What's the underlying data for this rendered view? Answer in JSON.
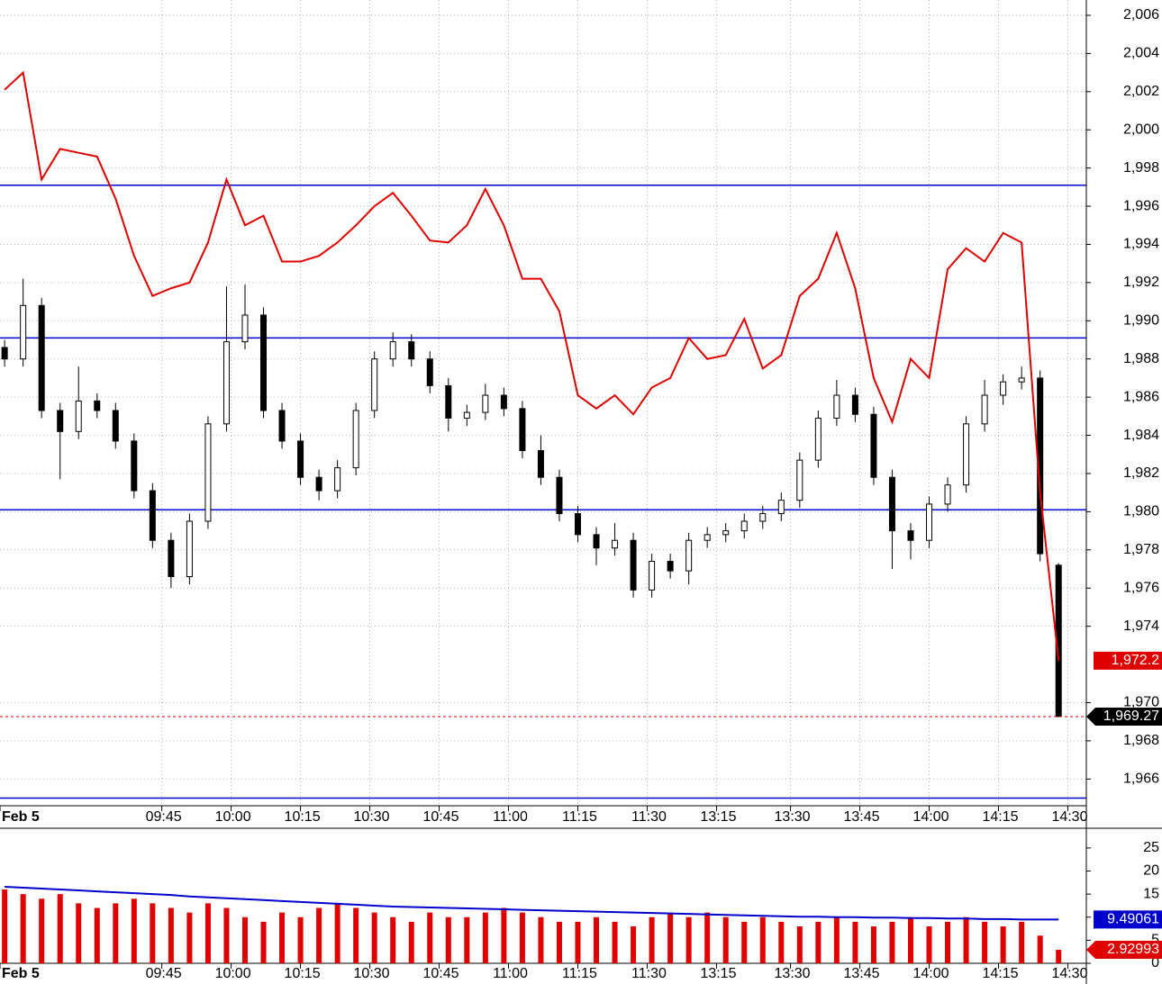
{
  "chart_data": [
    {
      "type": "candlestick",
      "xlim": [
        1,
        236
      ],
      "xticks": [
        {
          "value": 1,
          "label": "Feb 5"
        },
        {
          "value": 36,
          "label": "09:45"
        },
        {
          "value": 51,
          "label": "10:00"
        },
        {
          "value": 66,
          "label": "10:15"
        },
        {
          "value": 81,
          "label": "10:30"
        },
        {
          "value": 96,
          "label": "10:45"
        },
        {
          "value": 111,
          "label": "11:00"
        },
        {
          "value": 126,
          "label": "11:15"
        },
        {
          "value": 141,
          "label": "11:30"
        },
        {
          "value": 156,
          "label": "13:15"
        },
        {
          "value": 172,
          "label": "13:30"
        },
        {
          "value": 187,
          "label": "13:45"
        },
        {
          "value": 202,
          "label": "14:00"
        },
        {
          "value": 217,
          "label": "14:15"
        },
        {
          "value": 232,
          "label": "14:30"
        }
      ],
      "ylim": [
        1964.6,
        2006.8
      ],
      "yticks": [
        {
          "value": 1966,
          "label": "1,966"
        },
        {
          "value": 1968,
          "label": "1,968"
        },
        {
          "value": 1970,
          "label": "1,970"
        },
        {
          "value": 1974,
          "label": "1,974"
        },
        {
          "value": 1976,
          "label": "1,976"
        },
        {
          "value": 1978,
          "label": "1,978"
        },
        {
          "value": 1980,
          "label": "1,980"
        },
        {
          "value": 1982,
          "label": "1,982"
        },
        {
          "value": 1984,
          "label": "1,984"
        },
        {
          "value": 1986,
          "label": "1,986"
        },
        {
          "value": 1988,
          "label": "1,988"
        },
        {
          "value": 1990,
          "label": "1,990"
        },
        {
          "value": 1992,
          "label": "1,992"
        },
        {
          "value": 1994,
          "label": "1,994"
        },
        {
          "value": 1996,
          "label": "1,996"
        },
        {
          "value": 1998,
          "label": "1,998"
        },
        {
          "value": 2000,
          "label": "2,000"
        },
        {
          "value": 2002,
          "label": "2,002"
        },
        {
          "value": 2004,
          "label": "2,004"
        },
        {
          "value": 2006,
          "label": "2,006"
        }
      ],
      "grid": true,
      "x": [
        2,
        6,
        10,
        14,
        18,
        22,
        26,
        30,
        34,
        38,
        42,
        46,
        50,
        54,
        58,
        62,
        66,
        70,
        74,
        78,
        82,
        86,
        90,
        94,
        98,
        102,
        106,
        110,
        114,
        118,
        122,
        126,
        130,
        134,
        138,
        142,
        146,
        150,
        154,
        158,
        162,
        166,
        170,
        174,
        178,
        182,
        186,
        190,
        194,
        198,
        202,
        206,
        210,
        214,
        218,
        222,
        226,
        230
      ],
      "series": [
        {
          "type": "candlestick",
          "up_color": "#ffffff",
          "down_color": "#000000",
          "last_label": "1,969.27",
          "open": [
            1988.6,
            1988.0,
            1990.8,
            1985.3,
            1984.2,
            1985.8,
            1985.3,
            1983.7,
            1981.1,
            1978.5,
            1976.6,
            1979.5,
            1984.6,
            1988.9,
            1990.3,
            1985.3,
            1983.7,
            1981.8,
            1981.1,
            1982.3,
            1985.3,
            1988.0,
            1988.9,
            1988.0,
            1986.6,
            1984.9,
            1985.2,
            1986.1,
            1985.4,
            1983.2,
            1981.8,
            1979.9,
            1978.8,
            1978.1,
            1978.5,
            1975.9,
            1977.4,
            1976.9,
            1978.5,
            1978.8,
            1979.0,
            1979.5,
            1979.9,
            1980.6,
            1982.7,
            1984.9,
            1986.1,
            1985.1,
            1981.8,
            1979.0,
            1978.5,
            1980.4,
            1981.4,
            1984.6,
            1986.1,
            1986.8,
            1987.0,
            1977.2
          ],
          "high": [
            1989.0,
            1992.2,
            1991.2,
            1985.7,
            1987.6,
            1986.2,
            1985.7,
            1984.1,
            1981.5,
            1978.9,
            1979.9,
            1985.0,
            1991.8,
            1991.9,
            1990.7,
            1985.7,
            1984.1,
            1982.2,
            1982.7,
            1985.7,
            1988.4,
            1989.4,
            1989.3,
            1988.4,
            1987.0,
            1985.6,
            1986.7,
            1986.5,
            1985.8,
            1984.0,
            1982.2,
            1980.3,
            1979.2,
            1979.4,
            1978.9,
            1977.8,
            1977.8,
            1978.9,
            1979.2,
            1979.4,
            1979.9,
            1980.3,
            1981.0,
            1983.1,
            1985.3,
            1986.9,
            1986.5,
            1985.5,
            1982.2,
            1979.4,
            1980.8,
            1981.8,
            1985.0,
            1986.9,
            1987.2,
            1987.6,
            1987.4,
            1977.3
          ],
          "low": [
            1987.6,
            1987.6,
            1984.9,
            1981.7,
            1983.8,
            1984.9,
            1983.3,
            1980.7,
            1978.1,
            1976.0,
            1976.2,
            1979.1,
            1984.2,
            1988.5,
            1984.9,
            1983.3,
            1981.4,
            1980.6,
            1980.7,
            1981.9,
            1984.9,
            1987.6,
            1987.6,
            1986.2,
            1984.2,
            1984.5,
            1984.8,
            1985.0,
            1982.8,
            1981.4,
            1979.5,
            1978.4,
            1977.2,
            1977.7,
            1975.5,
            1975.5,
            1976.5,
            1976.2,
            1978.1,
            1978.4,
            1978.6,
            1979.1,
            1979.5,
            1980.2,
            1982.3,
            1984.5,
            1984.7,
            1981.4,
            1977.0,
            1977.5,
            1978.1,
            1980.0,
            1981.0,
            1984.2,
            1985.6,
            1986.4,
            1977.4,
            1969.27
          ],
          "close": [
            1988.0,
            1990.8,
            1985.3,
            1984.2,
            1985.8,
            1985.3,
            1983.7,
            1981.1,
            1978.5,
            1976.6,
            1979.5,
            1984.6,
            1988.9,
            1990.3,
            1985.3,
            1983.7,
            1981.8,
            1981.1,
            1982.3,
            1985.3,
            1988.0,
            1988.9,
            1988.0,
            1986.6,
            1984.9,
            1985.2,
            1986.1,
            1985.4,
            1983.2,
            1981.8,
            1979.9,
            1978.8,
            1978.1,
            1978.5,
            1975.9,
            1977.4,
            1976.9,
            1978.5,
            1978.8,
            1979.0,
            1979.5,
            1979.9,
            1980.6,
            1982.7,
            1984.9,
            1986.1,
            1985.1,
            1981.8,
            1979.0,
            1978.5,
            1980.4,
            1981.4,
            1984.6,
            1986.1,
            1986.8,
            1987.0,
            1977.8,
            1969.27
          ]
        },
        {
          "type": "line",
          "color": "#e00000",
          "last_label": "1,972.2",
          "values": [
            2002.1,
            2003.0,
            1997.4,
            1999.0,
            1998.8,
            1998.6,
            1996.4,
            1993.4,
            1991.3,
            1991.7,
            1992.0,
            1994.1,
            1997.4,
            1995.0,
            1995.5,
            1993.1,
            1993.1,
            1993.4,
            1994.1,
            1995.0,
            1996.0,
            1996.7,
            1995.5,
            1994.2,
            1994.1,
            1995.0,
            1996.9,
            1995.0,
            1992.2,
            1992.2,
            1990.5,
            1986.1,
            1985.4,
            1986.1,
            1985.1,
            1986.5,
            1987.0,
            1989.1,
            1988.0,
            1988.2,
            1990.1,
            1987.5,
            1988.2,
            1991.3,
            1992.2,
            1994.6,
            1991.7,
            1987.0,
            1984.7,
            1988.0,
            1987.0,
            1992.7,
            1993.8,
            1993.1,
            1994.6,
            1994.1,
            1981.0,
            1972.2
          ]
        }
      ],
      "hlines": {
        "color": "#0000cc",
        "values": [
          1997.1,
          1989.1,
          1980.1,
          1965.0
        ]
      }
    },
    {
      "type": "bar",
      "xlim": [
        1,
        236
      ],
      "xticks": [
        {
          "value": 1,
          "label": "Feb 5"
        },
        {
          "value": 36,
          "label": "09:45"
        },
        {
          "value": 51,
          "label": "10:00"
        },
        {
          "value": 66,
          "label": "10:15"
        },
        {
          "value": 81,
          "label": "10:30"
        },
        {
          "value": 96,
          "label": "10:45"
        },
        {
          "value": 111,
          "label": "11:00"
        },
        {
          "value": 126,
          "label": "11:15"
        },
        {
          "value": 141,
          "label": "11:30"
        },
        {
          "value": 156,
          "label": "13:15"
        },
        {
          "value": 172,
          "label": "13:30"
        },
        {
          "value": 187,
          "label": "13:45"
        },
        {
          "value": 202,
          "label": "14:00"
        },
        {
          "value": 217,
          "label": "14:15"
        },
        {
          "value": 232,
          "label": "14:30"
        }
      ],
      "ylim": [
        0,
        28.3
      ],
      "yticks": [
        0,
        5,
        10,
        15,
        20,
        25
      ],
      "x": [
        2,
        6,
        10,
        14,
        18,
        22,
        26,
        30,
        34,
        38,
        42,
        46,
        50,
        54,
        58,
        62,
        66,
        70,
        74,
        78,
        82,
        86,
        90,
        94,
        98,
        102,
        106,
        110,
        114,
        118,
        122,
        126,
        130,
        134,
        138,
        142,
        146,
        150,
        154,
        158,
        162,
        166,
        170,
        174,
        178,
        182,
        186,
        190,
        194,
        198,
        202,
        206,
        210,
        214,
        218,
        222,
        226,
        230
      ],
      "series": [
        {
          "type": "bar",
          "color": "#e00000",
          "last_label": "2.92993",
          "values": [
            16,
            15,
            14,
            15,
            13,
            12,
            13,
            14,
            13,
            12,
            11,
            13,
            12,
            10,
            9,
            11,
            10,
            12,
            13,
            12,
            11,
            10,
            9,
            11,
            10,
            10,
            11,
            12,
            11,
            10,
            9,
            9,
            10,
            9,
            8,
            10,
            11,
            10,
            11,
            10,
            9,
            10,
            9,
            8,
            9,
            10,
            9,
            8,
            9,
            10,
            8,
            9,
            10,
            9,
            8,
            9,
            6,
            2.92993
          ]
        },
        {
          "type": "line",
          "color": "#0000cc",
          "last_label": "9.49061",
          "values": [
            16.6,
            16.4,
            16.2,
            16.0,
            15.8,
            15.6,
            15.4,
            15.2,
            15.0,
            14.8,
            14.5,
            14.3,
            14.1,
            13.9,
            13.7,
            13.5,
            13.3,
            13.1,
            12.9,
            12.7,
            12.5,
            12.3,
            12.2,
            12.1,
            12.0,
            11.9,
            11.8,
            11.7,
            11.6,
            11.5,
            11.4,
            11.3,
            11.2,
            11.1,
            11.0,
            10.9,
            10.8,
            10.7,
            10.6,
            10.5,
            10.4,
            10.3,
            10.2,
            10.1,
            10.1,
            10.0,
            10.0,
            9.9,
            9.9,
            9.8,
            9.8,
            9.7,
            9.7,
            9.6,
            9.6,
            9.5,
            9.5,
            9.49061
          ]
        }
      ]
    }
  ]
}
